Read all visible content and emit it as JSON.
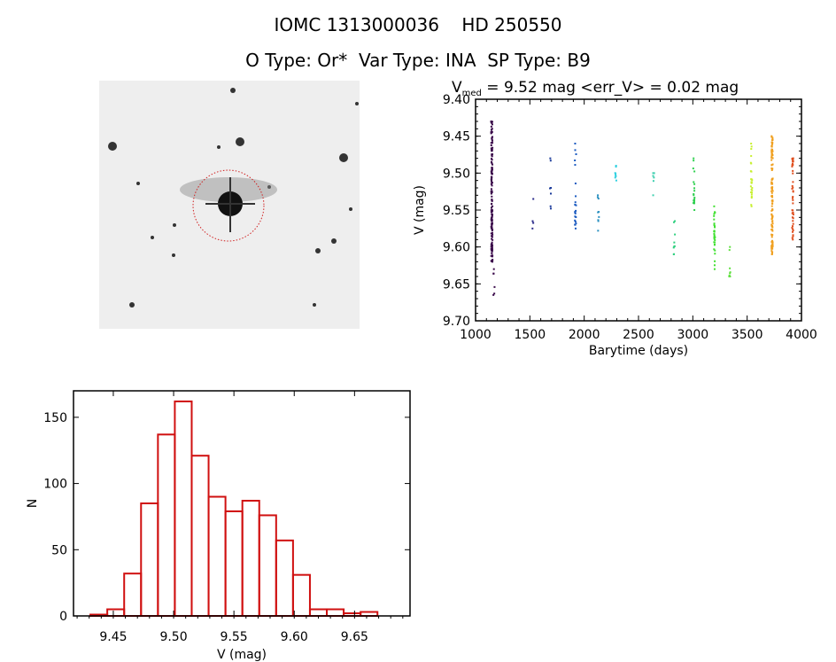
{
  "title_line1": "IOMC 1313000036    HD 250550",
  "title_line2": "O Type: Or*  Var Type: INA  SP Type: B9",
  "image_panel": {
    "label": "Finding chart image"
  },
  "chart_data": [
    {
      "type": "scatter",
      "title_prefix": "V",
      "title_sub": "med",
      "title_rest": " = 9.52 mag <err_V> = 0.02 mag",
      "xlabel": "Barytime (days)",
      "ylabel": "V (mag)",
      "xlim": [
        1000,
        4000
      ],
      "ylim": [
        9.7,
        9.4
      ],
      "xticks": [
        "1000",
        "1500",
        "2000",
        "2500",
        "3000",
        "3500",
        "4000"
      ],
      "yticks": [
        "9.40",
        "9.45",
        "9.50",
        "9.55",
        "9.60",
        "9.65",
        "9.70"
      ],
      "clusters": [
        {
          "x": 1150,
          "vmin": 9.43,
          "vmax": 9.62,
          "n": 160,
          "color": "#3a0a4a"
        },
        {
          "x": 1170,
          "vmin": 9.63,
          "vmax": 9.665,
          "n": 6,
          "color": "#3a0a4a"
        },
        {
          "x": 1530,
          "vmin": 9.535,
          "vmax": 9.575,
          "n": 4,
          "color": "#2a2a8a"
        },
        {
          "x": 1690,
          "vmin": 9.48,
          "vmax": 9.548,
          "n": 7,
          "color": "#1a3a9a"
        },
        {
          "x": 1920,
          "vmin": 9.46,
          "vmax": 9.575,
          "n": 22,
          "color": "#1a5ac0"
        },
        {
          "x": 2130,
          "vmin": 9.53,
          "vmax": 9.578,
          "n": 9,
          "color": "#2a90c0"
        },
        {
          "x": 2290,
          "vmin": 9.49,
          "vmax": 9.51,
          "n": 8,
          "color": "#30d0e0"
        },
        {
          "x": 2640,
          "vmin": 9.5,
          "vmax": 9.53,
          "n": 6,
          "color": "#40d0b0"
        },
        {
          "x": 2830,
          "vmin": 9.565,
          "vmax": 9.61,
          "n": 9,
          "color": "#30d080"
        },
        {
          "x": 3010,
          "vmin": 9.48,
          "vmax": 9.55,
          "n": 20,
          "color": "#30d050"
        },
        {
          "x": 3200,
          "vmin": 9.545,
          "vmax": 9.63,
          "n": 30,
          "color": "#40e030"
        },
        {
          "x": 3340,
          "vmin": 9.6,
          "vmax": 9.64,
          "n": 8,
          "color": "#60e040"
        },
        {
          "x": 3540,
          "vmin": 9.46,
          "vmax": 9.545,
          "n": 25,
          "color": "#c8f030"
        },
        {
          "x": 3730,
          "vmin": 9.45,
          "vmax": 9.61,
          "n": 120,
          "color": "#f0a020"
        },
        {
          "x": 3920,
          "vmin": 9.48,
          "vmax": 9.59,
          "n": 45,
          "color": "#e05020"
        }
      ]
    },
    {
      "type": "bar",
      "xlabel": "V (mag)",
      "ylabel": "N",
      "xlim": [
        9.417,
        9.696
      ],
      "ylim": [
        0,
        170
      ],
      "xticks": [
        "9.45",
        "9.50",
        "9.55",
        "9.60",
        "9.65"
      ],
      "yticks": [
        "0",
        "50",
        "100",
        "150"
      ],
      "bin_start": 9.431,
      "bin_width": 0.014,
      "values": [
        1,
        5,
        32,
        85,
        137,
        162,
        121,
        90,
        79,
        87,
        76,
        57,
        31,
        5,
        5,
        2,
        3
      ],
      "color": "#d01010"
    }
  ]
}
